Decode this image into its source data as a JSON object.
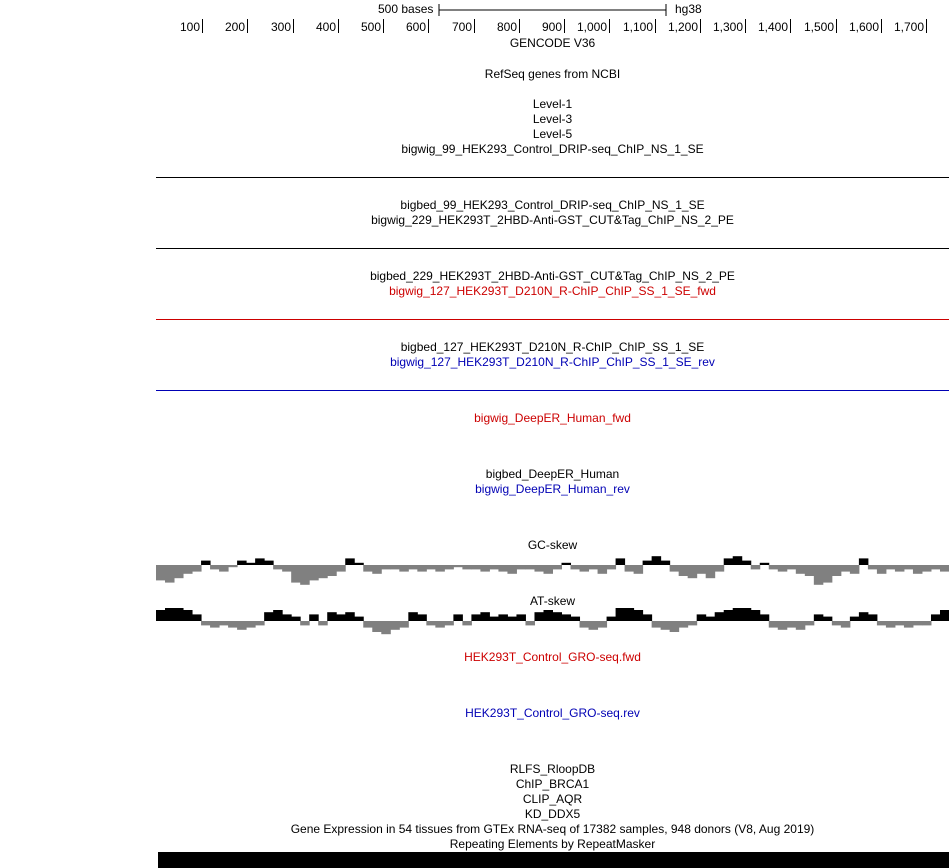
{
  "ruler": {
    "scale_label": "500 bases",
    "assembly": "hg38",
    "ticks": [
      "100",
      "200",
      "300",
      "400",
      "500",
      "600",
      "700",
      "800",
      "900",
      "1,000",
      "1,100",
      "1,200",
      "1,300",
      "1,400",
      "1,500",
      "1,600",
      "1,700"
    ]
  },
  "tracks": {
    "gencode": "GENCODE V36",
    "refseq": "RefSeq genes from NCBI",
    "level1": "Level-1",
    "level3": "Level-3",
    "level5": "Level-5",
    "bigwig99": "bigwig_99_HEK293_Control_DRIP-seq_ChIP_NS_1_SE",
    "bigbed99": "bigbed_99_HEK293_Control_DRIP-seq_ChIP_NS_1_SE",
    "bigwig229": "bigwig_229_HEK293T_2HBD-Anti-GST_CUT&Tag_ChIP_NS_2_PE",
    "bigbed229": "bigbed_229_HEK293T_2HBD-Anti-GST_CUT&Tag_ChIP_NS_2_PE",
    "bigwig127fwd": "bigwig_127_HEK293T_D210N_R-ChIP_ChIP_SS_1_SE_fwd",
    "bigbed127": "bigbed_127_HEK293T_D210N_R-ChIP_ChIP_SS_1_SE",
    "bigwig127rev": "bigwig_127_HEK293T_D210N_R-ChIP_ChIP_SS_1_SE_rev",
    "deeperfwd": "bigwig_DeepER_Human_fwd",
    "deeperbed": "bigbed_DeepER_Human",
    "deeperrev": "bigwig_DeepER_Human_rev",
    "gcskew": "GC-skew",
    "atskew": "AT-skew",
    "grofwd": "HEK293T_Control_GRO-seq.fwd",
    "grorev": "HEK293T_Control_GRO-seq.rev",
    "rlfs": "RLFS_RloopDB",
    "brca1": "ChIP_BRCA1",
    "aqr": "CLIP_AQR",
    "ddx5": "KD_DDX5",
    "gtex": "Gene Expression in 54 tissues from GTEx RNA-seq of 17382 samples, 948 donors (V8, Aug 2019)",
    "rmsk": "Repeating Elements by RepeatMasker"
  },
  "colors": {
    "fwd": "#cc0000",
    "rev": "#0000b4",
    "skew_pos": "#000000",
    "skew_neg": "#808080"
  },
  "gc_skew_values": [
    -0.7,
    -0.8,
    -0.6,
    -0.4,
    -0.3,
    0.2,
    -0.2,
    -0.3,
    -0.1,
    0.2,
    0.1,
    0.3,
    0.2,
    -0.2,
    -0.3,
    -0.8,
    -0.9,
    -0.7,
    -0.6,
    -0.5,
    -0.3,
    0.3,
    0.1,
    -0.3,
    -0.4,
    -0.2,
    -0.2,
    -0.3,
    -0.2,
    -0.3,
    -0.2,
    -0.3,
    -0.2,
    -0.1,
    -0.2,
    -0.2,
    -0.3,
    -0.2,
    -0.3,
    -0.4,
    -0.2,
    -0.2,
    -0.3,
    -0.4,
    -0.2,
    0.1,
    -0.2,
    -0.3,
    -0.2,
    -0.4,
    -0.2,
    0.3,
    -0.3,
    -0.4,
    0.2,
    0.4,
    0.2,
    -0.3,
    -0.5,
    -0.6,
    -0.4,
    -0.6,
    -0.3,
    0.3,
    0.4,
    0.2,
    -0.2,
    0.1,
    -0.2,
    -0.3,
    -0.2,
    -0.4,
    -0.5,
    -0.9,
    -0.8,
    -0.5,
    -0.3,
    -0.4,
    0.3,
    -0.2,
    -0.4,
    -0.2,
    -0.3,
    -0.2,
    -0.4,
    -0.3,
    -0.2,
    -0.3
  ],
  "at_skew_values": [
    0.5,
    0.6,
    0.7,
    0.5,
    0.3,
    -0.2,
    -0.3,
    -0.2,
    -0.3,
    -0.4,
    -0.3,
    -0.2,
    0.4,
    0.5,
    0.3,
    0.2,
    -0.2,
    0.3,
    -0.2,
    0.4,
    0.3,
    0.4,
    0.2,
    -0.3,
    -0.5,
    -0.6,
    -0.4,
    -0.3,
    0.4,
    0.3,
    -0.2,
    -0.3,
    -0.2,
    0.3,
    -0.2,
    0.3,
    0.4,
    0.2,
    0.3,
    0.2,
    0.3,
    -0.2,
    0.4,
    0.5,
    0.4,
    0.3,
    0.2,
    -0.3,
    -0.4,
    -0.3,
    0.2,
    0.6,
    0.7,
    0.5,
    0.3,
    -0.3,
    -0.4,
    -0.5,
    -0.3,
    -0.2,
    0.3,
    0.2,
    0.4,
    0.5,
    0.7,
    0.8,
    0.5,
    0.3,
    -0.3,
    -0.4,
    -0.3,
    -0.4,
    -0.2,
    0.3,
    0.2,
    -0.2,
    -0.3,
    0.2,
    0.4,
    0.3,
    -0.2,
    -0.3,
    -0.2,
    -0.3,
    -0.2,
    -0.2,
    0.3,
    0.5
  ]
}
